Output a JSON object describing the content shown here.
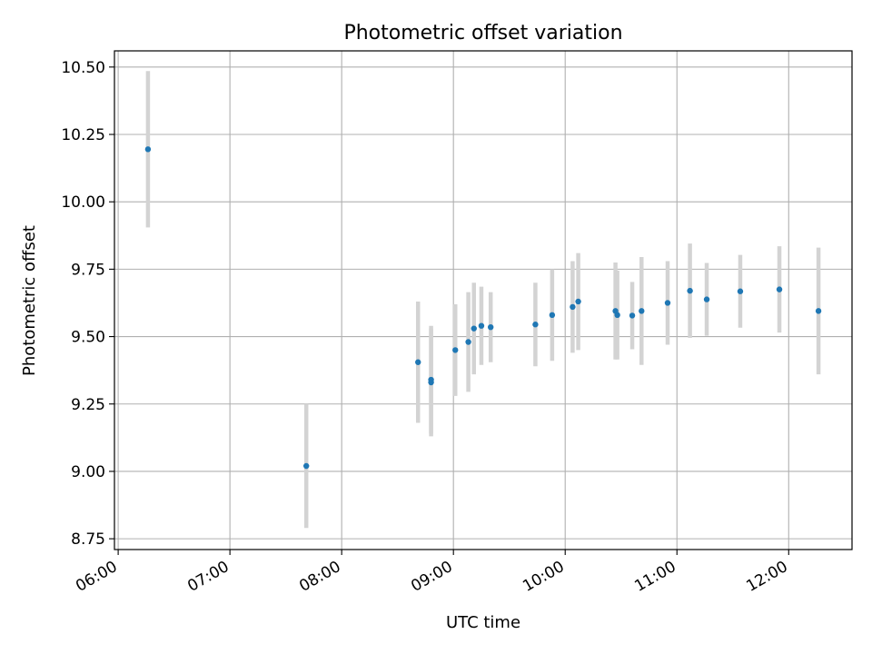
{
  "chart_data": {
    "type": "scatter",
    "title": "Photometric offset variation",
    "xlabel": "UTC time",
    "ylabel": "Photometric offset",
    "x_axis_type": "time",
    "xlim": [
      "05:58",
      "12:34"
    ],
    "ylim": [
      8.71,
      10.56
    ],
    "xticks": [
      "06:00",
      "07:00",
      "08:00",
      "09:00",
      "10:00",
      "11:00",
      "12:00"
    ],
    "yticks": [
      "8.75",
      "9.00",
      "9.25",
      "9.50",
      "9.75",
      "10.00",
      "10.25",
      "10.50"
    ],
    "grid": true,
    "point_color": "#1f77b4",
    "errorbar_color": "#d3d3d3",
    "points": [
      {
        "x": "06:16",
        "y": 10.195,
        "err": 0.29
      },
      {
        "x": "07:41",
        "y": 9.02,
        "err": 0.23
      },
      {
        "x": "08:41",
        "y": 9.405,
        "err": 0.225
      },
      {
        "x": "08:48",
        "y": 9.34,
        "err": 0.2
      },
      {
        "x": "08:48",
        "y": 9.33,
        "err": 0.2
      },
      {
        "x": "09:01",
        "y": 9.45,
        "err": 0.17
      },
      {
        "x": "09:08",
        "y": 9.48,
        "err": 0.185
      },
      {
        "x": "09:11",
        "y": 9.53,
        "err": 0.17
      },
      {
        "x": "09:15",
        "y": 9.54,
        "err": 0.145
      },
      {
        "x": "09:20",
        "y": 9.535,
        "err": 0.13
      },
      {
        "x": "09:44",
        "y": 9.545,
        "err": 0.155
      },
      {
        "x": "09:53",
        "y": 9.58,
        "err": 0.17
      },
      {
        "x": "10:04",
        "y": 9.61,
        "err": 0.17
      },
      {
        "x": "10:07",
        "y": 9.63,
        "err": 0.18
      },
      {
        "x": "10:27",
        "y": 9.595,
        "err": 0.18
      },
      {
        "x": "10:28",
        "y": 9.58,
        "err": 0.165
      },
      {
        "x": "10:36",
        "y": 9.578,
        "err": 0.125
      },
      {
        "x": "10:41",
        "y": 9.595,
        "err": 0.2
      },
      {
        "x": "10:55",
        "y": 9.625,
        "err": 0.155
      },
      {
        "x": "11:07",
        "y": 9.67,
        "err": 0.175
      },
      {
        "x": "11:16",
        "y": 9.638,
        "err": 0.135
      },
      {
        "x": "11:34",
        "y": 9.668,
        "err": 0.135
      },
      {
        "x": "11:55",
        "y": 9.675,
        "err": 0.16
      },
      {
        "x": "12:16",
        "y": 9.595,
        "err": 0.235
      }
    ]
  }
}
